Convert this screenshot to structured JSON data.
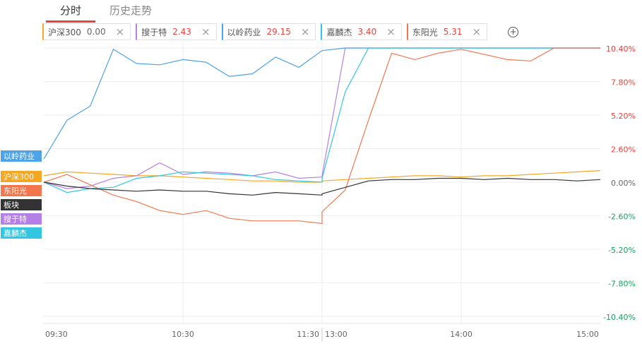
{
  "tabs": [
    "分时",
    "历史走势"
  ],
  "chart_data": {
    "type": "line",
    "x": [
      "09:30",
      "09:40",
      "09:50",
      "10:00",
      "10:10",
      "10:20",
      "10:30",
      "10:40",
      "10:50",
      "11:00",
      "11:10",
      "11:20",
      "11:30",
      "13:00",
      "13:10",
      "13:20",
      "13:30",
      "13:40",
      "13:50",
      "14:00",
      "14:10",
      "14:20",
      "14:30",
      "14:40",
      "14:50",
      "15:00"
    ],
    "series": [
      {
        "name": "沪深300",
        "color": "#f5a623",
        "values": [
          0.5,
          0.8,
          0.7,
          0.6,
          0.5,
          0.5,
          0.4,
          0.3,
          0.2,
          0.1,
          0.1,
          0.0,
          0.0,
          0.1,
          0.2,
          0.3,
          0.4,
          0.5,
          0.5,
          0.4,
          0.5,
          0.5,
          0.6,
          0.7,
          0.8,
          0.9
        ]
      },
      {
        "name": "搜于特",
        "color": "#b57fe6",
        "values": [
          0.0,
          -0.5,
          -0.3,
          0.3,
          0.5,
          1.5,
          0.6,
          0.8,
          0.7,
          0.5,
          0.8,
          0.3,
          0.4,
          0.5,
          10.4,
          10.4,
          10.4,
          10.4,
          10.4,
          10.4,
          10.4,
          10.4,
          10.4,
          10.4,
          10.4,
          10.4
        ]
      },
      {
        "name": "以岭药业",
        "color": "#4da3e8",
        "values": [
          1.8,
          4.8,
          5.9,
          10.3,
          9.2,
          9.1,
          9.5,
          9.3,
          8.2,
          8.4,
          9.7,
          8.9,
          10.2,
          10.2,
          10.4,
          10.4,
          10.4,
          10.4,
          10.4,
          10.4,
          10.4,
          10.4,
          10.4,
          10.4,
          10.4,
          10.4
        ]
      },
      {
        "name": "嘉麟杰",
        "color": "#33c6e0",
        "values": [
          0.0,
          -0.8,
          -0.5,
          -0.4,
          0.3,
          0.5,
          0.8,
          0.7,
          0.6,
          0.5,
          0.2,
          0.1,
          0.0,
          0.3,
          7.0,
          10.4,
          10.4,
          10.4,
          10.4,
          10.4,
          10.4,
          10.4,
          10.4,
          10.4,
          10.4,
          10.4
        ]
      },
      {
        "name": "东阳光",
        "color": "#f2764d",
        "values": [
          0.0,
          0.6,
          -0.2,
          -1.0,
          -1.5,
          -2.2,
          -2.5,
          -2.2,
          -2.8,
          -3.0,
          -3.0,
          -3.0,
          -3.2,
          -2.3,
          -0.6,
          4.8,
          10.0,
          9.5,
          10.0,
          10.3,
          9.9,
          9.5,
          9.4,
          10.4,
          10.4,
          10.4
        ]
      },
      {
        "name": "板块",
        "color": "#333333",
        "values": [
          0.0,
          -0.3,
          -0.5,
          -0.6,
          -0.7,
          -0.6,
          -0.7,
          -0.7,
          -0.9,
          -1.0,
          -0.8,
          -0.9,
          -1.0,
          -0.9,
          -0.4,
          0.1,
          0.2,
          0.2,
          0.3,
          0.3,
          0.2,
          0.3,
          0.2,
          0.2,
          0.1,
          0.2
        ]
      }
    ],
    "legend_values": [
      "0.00",
      "2.43",
      "29.15",
      "3.40",
      "5.31"
    ],
    "ylim": [
      -10.4,
      10.4
    ],
    "yticks": [
      {
        "value": 10.4,
        "label": "10.40%"
      },
      {
        "value": 7.8,
        "label": "7.80%"
      },
      {
        "value": 5.2,
        "label": "5.20%"
      },
      {
        "value": 2.6,
        "label": "2.60%"
      },
      {
        "value": 0,
        "label": "0.00%"
      },
      {
        "value": -2.6,
        "label": "-2.60%"
      },
      {
        "value": -5.2,
        "label": "-5.20%"
      },
      {
        "value": -7.8,
        "label": "-7.80%"
      },
      {
        "value": -10.4,
        "label": "-10.40%"
      }
    ],
    "xticks": [
      "09:30",
      "10:30",
      "11:30",
      "13:00",
      "14:00",
      "15:00"
    ],
    "up_color": "#e8413b",
    "down_color": "#19a15f",
    "grid": true
  }
}
